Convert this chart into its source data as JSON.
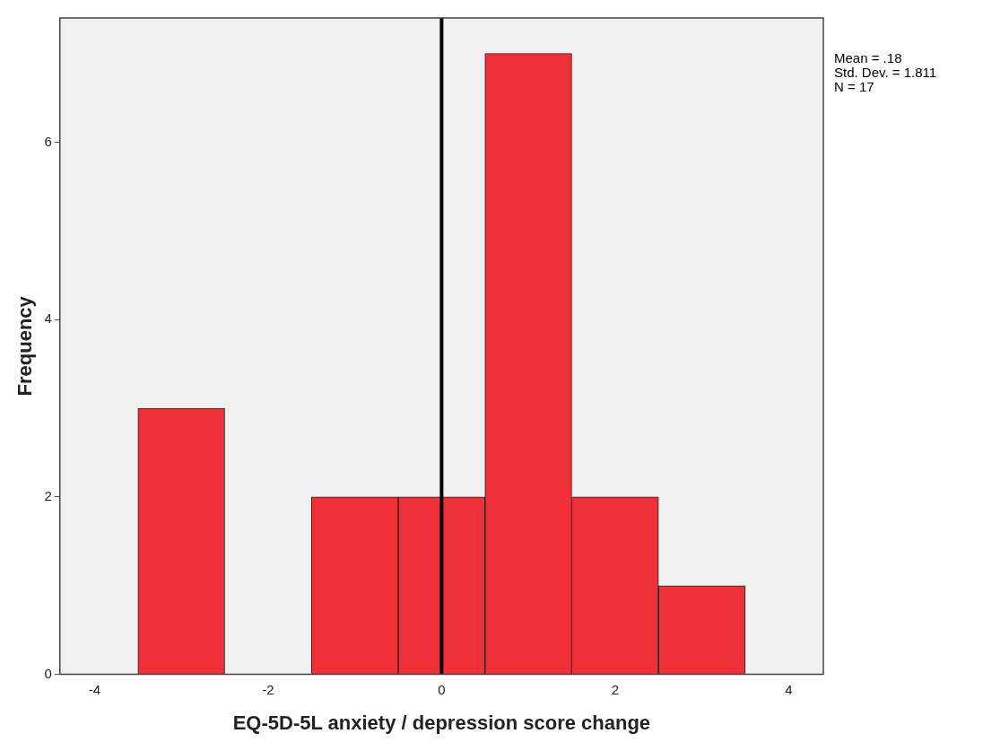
{
  "chart_data": {
    "type": "histogram",
    "xlabel": "EQ-5D-5L anxiety / depression score change",
    "ylabel": "Frequency",
    "bins": [
      -3.5,
      -2.5,
      -1.5,
      -0.5,
      0.5,
      1.5,
      2.5,
      3.5
    ],
    "values": [
      3,
      0,
      2,
      2,
      7,
      2,
      1
    ],
    "color": "#ef3038",
    "xlim": [
      -4.4,
      4.4
    ],
    "xticks": [
      -4,
      -2,
      0,
      2,
      4
    ],
    "ylim": [
      0,
      7.4
    ],
    "yticks": [
      0,
      2,
      4,
      6
    ],
    "grid": false,
    "ref_lines": [
      {
        "axis": "x",
        "value": 0,
        "color": "#000000"
      }
    ],
    "annotations": [
      "Mean = .18",
      "Std. Dev. = 1.811",
      "N = 17"
    ]
  }
}
